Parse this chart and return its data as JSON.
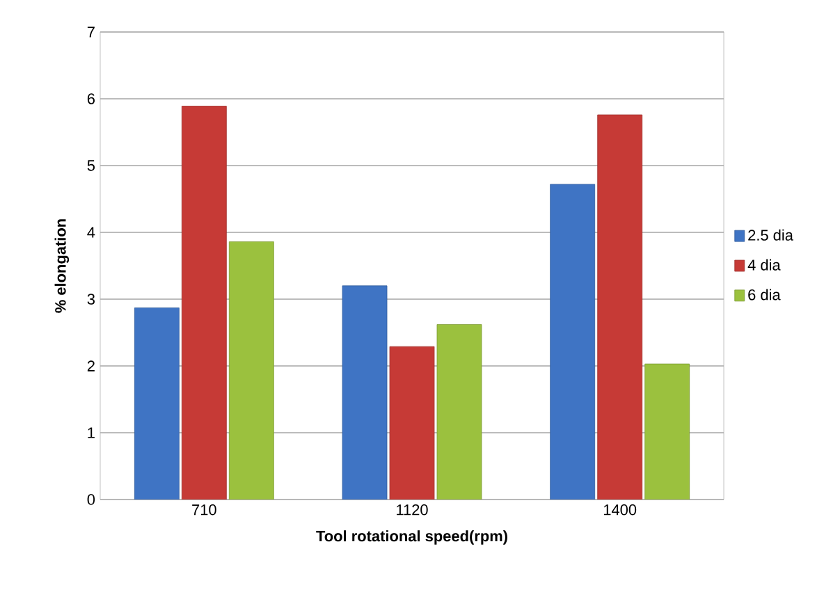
{
  "chart_data": {
    "type": "bar",
    "xlabel": "Tool rotational speed(rpm)",
    "ylabel": "% elongation",
    "categories": [
      "710",
      "1120",
      "1400"
    ],
    "series": [
      {
        "name": "2.5 dia",
        "color": "#3f74c4",
        "values": [
          2.87,
          3.2,
          4.72
        ]
      },
      {
        "name": "4 dia",
        "color": "#c63a36",
        "values": [
          5.89,
          2.29,
          5.76
        ]
      },
      {
        "name": "6 dia",
        "color": "#9bc13e",
        "values": [
          3.86,
          2.62,
          2.03
        ]
      }
    ],
    "ylim": [
      0,
      7
    ],
    "yticks": [
      0,
      1,
      2,
      3,
      4,
      5,
      6,
      7
    ],
    "grid": "y",
    "legend": "right"
  }
}
